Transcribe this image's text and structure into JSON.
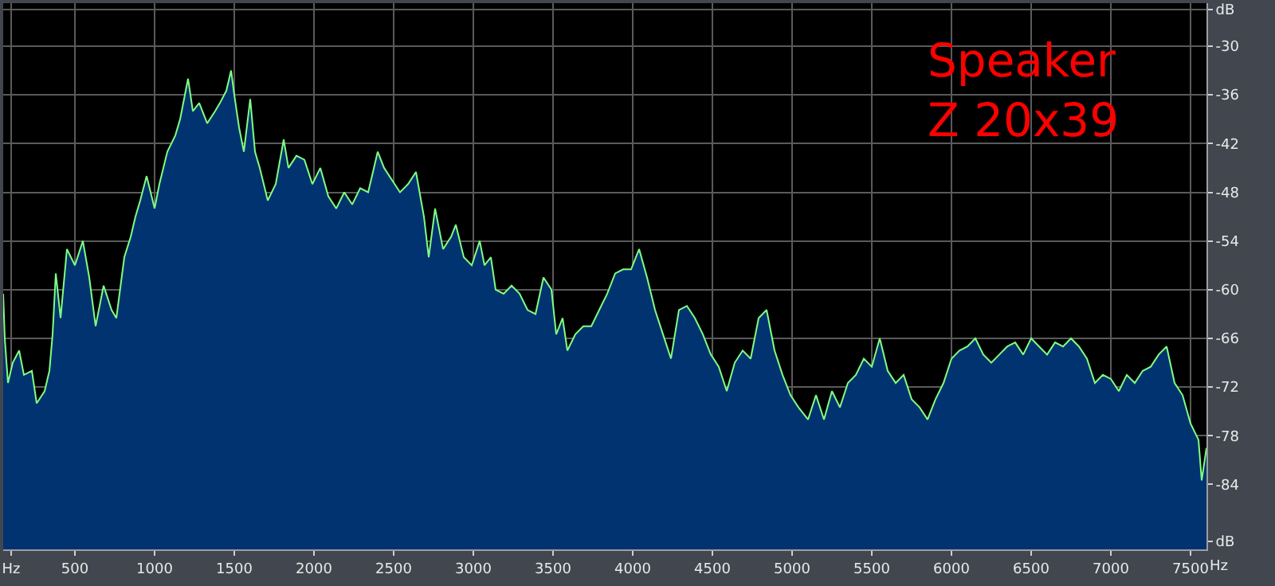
{
  "chart_data": {
    "type": "area",
    "xlabel": "Hz",
    "annotations": [
      "Speaker\nZ 20x39"
    ],
    "x": [
      50,
      60,
      80,
      110,
      150,
      180,
      230,
      260,
      310,
      340,
      360,
      380,
      410,
      450,
      500,
      550,
      590,
      630,
      680,
      730,
      760,
      810,
      850,
      880,
      910,
      950,
      1000,
      1030,
      1080,
      1130,
      1160,
      1210,
      1240,
      1280,
      1330,
      1380,
      1410,
      1450,
      1480,
      1500,
      1530,
      1560,
      1600,
      1630,
      1660,
      1710,
      1760,
      1810,
      1840,
      1890,
      1940,
      1990,
      2040,
      2090,
      2140,
      2190,
      2240,
      2290,
      2340,
      2400,
      2440,
      2490,
      2540,
      2590,
      2640,
      2690,
      2720,
      2760,
      2810,
      2860,
      2890,
      2940,
      2990,
      3040,
      3070,
      3110,
      3140,
      3190,
      3240,
      3290,
      3340,
      3390,
      3440,
      3490,
      3520,
      3560,
      3590,
      3640,
      3690,
      3740,
      3790,
      3840,
      3890,
      3940,
      3990,
      4040,
      4090,
      4140,
      4190,
      4240,
      4290,
      4340,
      4390,
      4440,
      4490,
      4540,
      4590,
      4640,
      4690,
      4740,
      4790,
      4840,
      4890,
      4940,
      4990,
      5040,
      5100,
      5150,
      5200,
      5250,
      5300,
      5350,
      5400,
      5450,
      5500,
      5550,
      5600,
      5650,
      5700,
      5750,
      5800,
      5850,
      5900,
      5950,
      6000,
      6050,
      6100,
      6150,
      6200,
      6250,
      6300,
      6350,
      6400,
      6450,
      6500,
      6550,
      6600,
      6650,
      6700,
      6750,
      6800,
      6850,
      6900,
      6950,
      7000,
      7050,
      7100,
      7150,
      7200,
      7250,
      7300,
      7350,
      7400,
      7450,
      7500,
      7550,
      7570,
      7600
    ],
    "series": [
      {
        "color": "#003370",
        "values": [
          -60.5,
          -66,
          -71.5,
          -69,
          -67.5,
          -70.5,
          -70,
          -74,
          -72.5,
          -70,
          -65.5,
          -58,
          -63.5,
          -55,
          -57,
          -54,
          -58.5,
          -64.5,
          -59.5,
          -62.5,
          -63.5,
          -56,
          -53.5,
          -51,
          -49,
          -46,
          -50,
          -47,
          -43,
          -41,
          -39,
          -34,
          -38,
          -37,
          -39.5,
          -38,
          -37,
          -35.5,
          -33,
          -36,
          -40,
          -43,
          -36.5,
          -43,
          -45,
          -49,
          -47,
          -41.5,
          -45,
          -43.5,
          -44,
          -47,
          -45,
          -48.5,
          -50,
          -48,
          -49.5,
          -47.5,
          -48,
          -43,
          -45,
          -46.5,
          -48,
          -47,
          -45.5,
          -51,
          -56,
          -50,
          -55,
          -53.5,
          -52,
          -56,
          -57,
          -54,
          -57,
          -56,
          -60,
          -60.5,
          -59.5,
          -60.5,
          -62.5,
          -63,
          -58.5,
          -60,
          -65.5,
          -63.5,
          -67.5,
          -65.5,
          -64.5,
          -64.5,
          -62.5,
          -60.5,
          -58,
          -57.5,
          -57.5,
          -55,
          -58.5,
          -62.5,
          -65.5,
          -68.5,
          -62.5,
          -62,
          -63.5,
          -65.5,
          -68,
          -69.5,
          -72.5,
          -69,
          -67.5,
          -68.5,
          -63.5,
          -62.5,
          -67.5,
          -70.5,
          -73,
          -74.5,
          -76,
          -73,
          -76,
          -72.5,
          -74.5,
          -71.5,
          -70.5,
          -68.5,
          -69.5,
          -66,
          -70,
          -71.5,
          -70.5,
          -73.5,
          -74.5,
          -76,
          -73.5,
          -71.5,
          -68.5,
          -67.5,
          -67,
          -66,
          -68,
          -69,
          -68,
          -67,
          -66.5,
          -68,
          -66,
          -67,
          -68,
          -66.5,
          -67,
          -66,
          -67,
          -68.5,
          -71.5,
          -70.5,
          -71,
          -72.5,
          -70.5,
          -71.5,
          -70,
          -69.5,
          -68,
          -67,
          -71.5,
          -73,
          -76.5,
          -78.5,
          -83.5,
          -79.5
        ]
      },
      {
        "type": "line",
        "color": "#80ff80",
        "values": [
          -60.5,
          -66,
          -71.5,
          -69,
          -67.5,
          -70.5,
          -70,
          -74,
          -72.5,
          -70,
          -65.5,
          -58,
          -63.5,
          -55,
          -57,
          -54,
          -58.5,
          -64.5,
          -59.5,
          -62.5,
          -63.5,
          -56,
          -53.5,
          -51,
          -49,
          -46,
          -50,
          -47,
          -43,
          -41,
          -39,
          -34,
          -38,
          -37,
          -39.5,
          -38,
          -37,
          -35.5,
          -33,
          -36,
          -40,
          -43,
          -36.5,
          -43,
          -45,
          -49,
          -47,
          -41.5,
          -45,
          -43.5,
          -44,
          -47,
          -45,
          -48.5,
          -50,
          -48,
          -49.5,
          -47.5,
          -48,
          -43,
          -45,
          -46.5,
          -48,
          -47,
          -45.5,
          -51,
          -56,
          -50,
          -55,
          -53.5,
          -52,
          -56,
          -57,
          -54,
          -57,
          -56,
          -60,
          -60.5,
          -59.5,
          -60.5,
          -62.5,
          -63,
          -58.5,
          -60,
          -65.5,
          -63.5,
          -67.5,
          -65.5,
          -64.5,
          -64.5,
          -62.5,
          -60.5,
          -58,
          -57.5,
          -57.5,
          -55,
          -58.5,
          -62.5,
          -65.5,
          -68.5,
          -62.5,
          -62,
          -63.5,
          -65.5,
          -68,
          -69.5,
          -72.5,
          -69,
          -67.5,
          -68.5,
          -63.5,
          -62.5,
          -67.5,
          -70.5,
          -73,
          -74.5,
          -76,
          -73,
          -76,
          -72.5,
          -74.5,
          -71.5,
          -70.5,
          -68.5,
          -69.5,
          -66,
          -70,
          -71.5,
          -70.5,
          -73.5,
          -74.5,
          -76,
          -73.5,
          -71.5,
          -68.5,
          -67.5,
          -67,
          -66,
          -68,
          -69,
          -68,
          -67,
          -66.5,
          -68,
          -66,
          -67,
          -68,
          -66.5,
          -67,
          -66,
          -67,
          -68.5,
          -71.5,
          -70.5,
          -71,
          -72.5,
          -70.5,
          -71.5,
          -70,
          -69.5,
          -68,
          -67,
          -71.5,
          -73,
          -76.5,
          -78.5,
          -83.5,
          -79.5
        ]
      }
    ],
    "xlim": [
      50,
      7600
    ],
    "ylim": [
      -92,
      -24.7
    ],
    "xticks": [
      {
        "value": 100,
        "label": "Hz"
      },
      500,
      1000,
      1500,
      2000,
      2500,
      3000,
      3500,
      4000,
      4500,
      5000,
      5500,
      6000,
      6500,
      7000,
      7500
    ],
    "yticks": [
      {
        "value": -91,
        "label": "dB"
      },
      -84,
      -78,
      -72,
      -66,
      -60,
      -54,
      -48,
      -42,
      -36,
      -30,
      {
        "value": -25.5,
        "label": "dB"
      }
    ],
    "grid": true
  }
}
